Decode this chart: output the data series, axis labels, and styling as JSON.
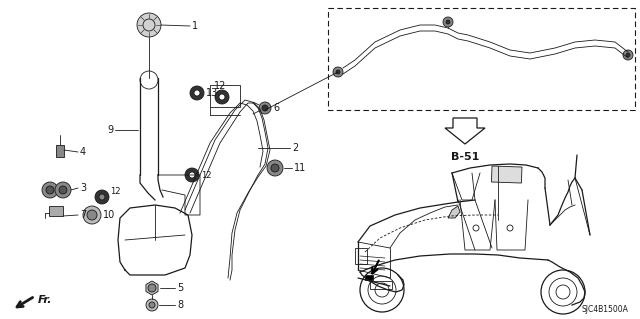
{
  "background_color": "#ffffff",
  "line_color": "#1a1a1a",
  "diagram_code": "SJC4B1500A",
  "fig_width": 6.4,
  "fig_height": 3.19,
  "dpi": 100
}
